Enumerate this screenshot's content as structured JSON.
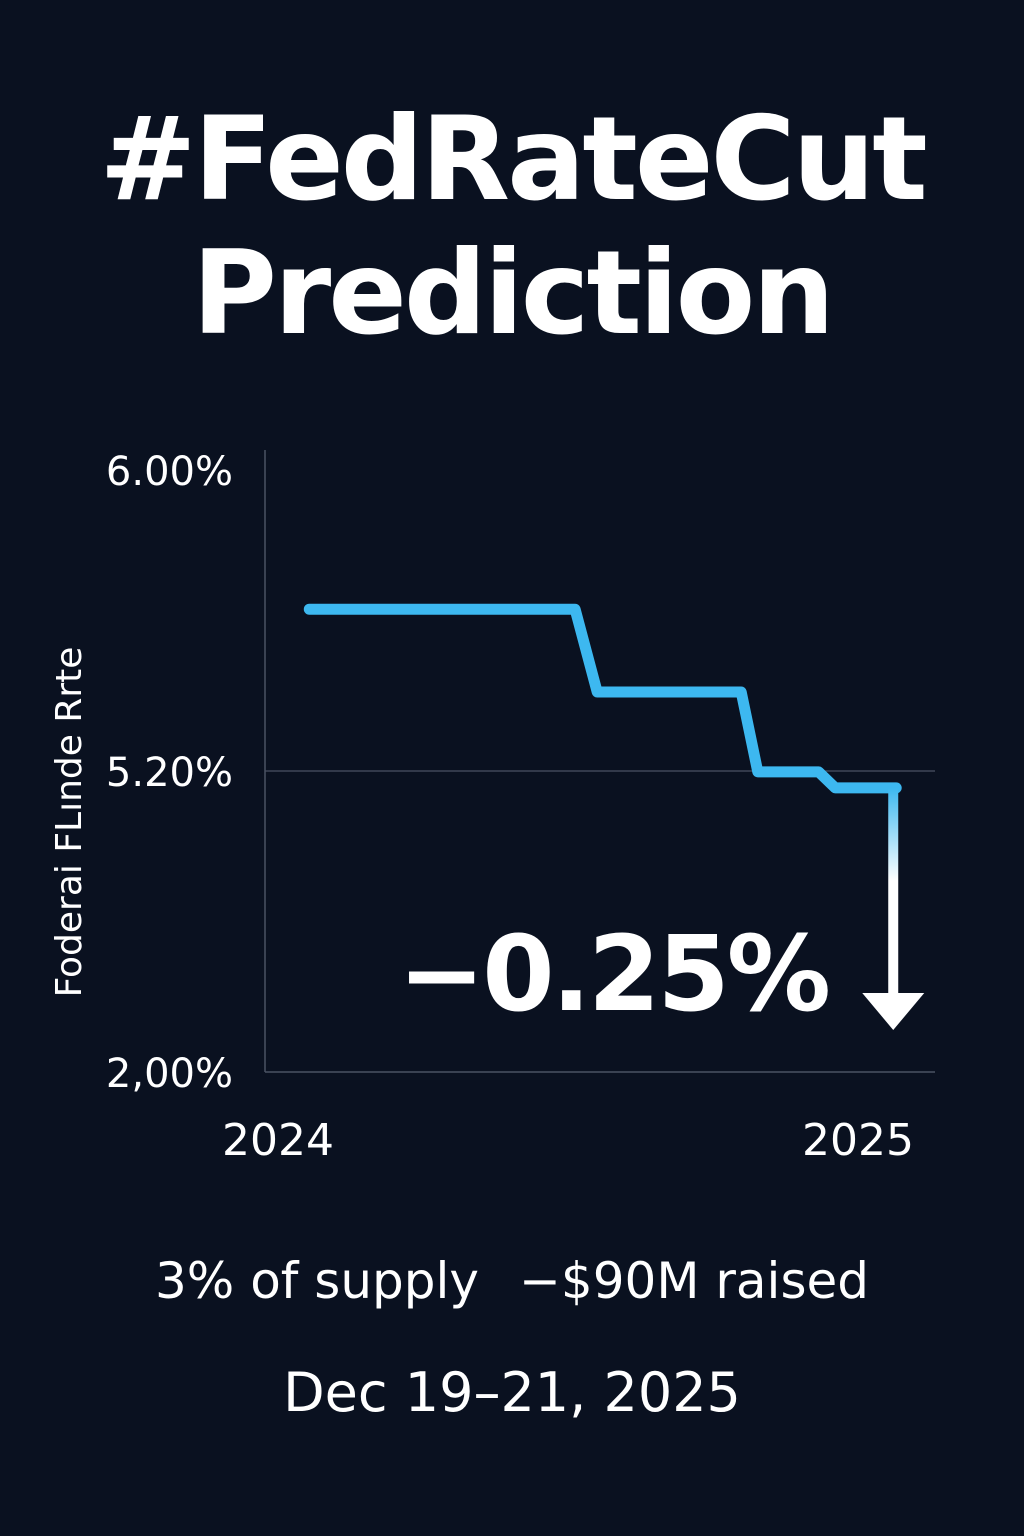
{
  "title": {
    "line1": "#FedRateCut",
    "line2": "Prediction"
  },
  "chart_data": {
    "type": "line",
    "ylabel": "Foderai FLınde Rrte",
    "y_ticks": [
      {
        "label": "6.00%",
        "value": 6.0
      },
      {
        "label": "5.20%",
        "value": 5.2
      },
      {
        "label": "2,00%",
        "value": 2.0
      }
    ],
    "x_ticks": [
      {
        "label": "2024",
        "value": 2024.0
      },
      {
        "label": "2025",
        "value": 2025.0
      }
    ],
    "xlim": [
      2023.92,
      2025.13
    ],
    "series": [
      {
        "step_points": [
          {
            "x": 2024.0,
            "y": 5.63
          },
          {
            "x": 2024.48,
            "y": 5.63
          },
          {
            "x": 2024.52,
            "y": 5.41
          },
          {
            "x": 2024.78,
            "y": 5.41
          },
          {
            "x": 2024.81,
            "y": 5.19
          },
          {
            "x": 2024.92,
            "y": 5.19
          },
          {
            "x": 2024.95,
            "y": 5.02
          },
          {
            "x": 2025.06,
            "y": 5.02
          }
        ],
        "color": "#3db8f0"
      }
    ],
    "annotation": {
      "text": "−0.25%",
      "arrow": "down",
      "color": "#ffffff"
    },
    "grid": "horizontal line at 5.20%",
    "legend": "none"
  },
  "footer": {
    "stats_left": "3% of supply",
    "stats_right": "−$90M raised",
    "date": "Dec 19–21, 2025"
  },
  "colors": {
    "background": "#0a1120",
    "line": "#3db8f0",
    "text": "#ffffff",
    "axis": "#4a5263"
  }
}
